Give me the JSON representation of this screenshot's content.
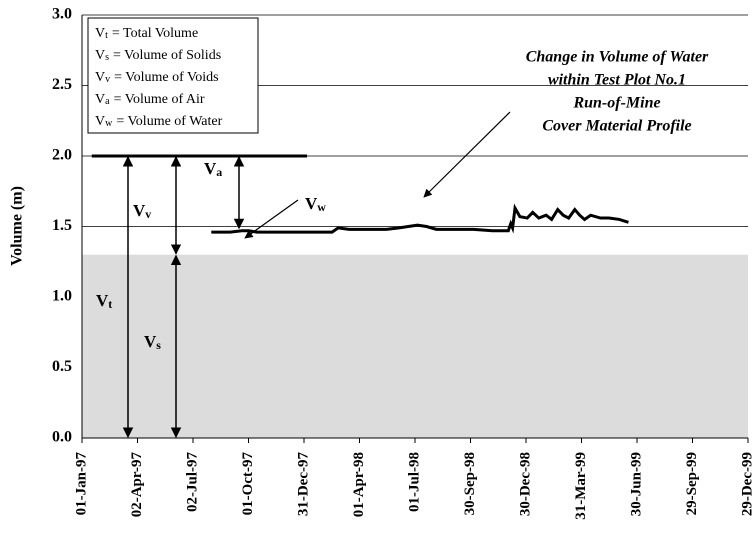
{
  "chart_data": {
    "type": "line",
    "y_label": "Volume (m)",
    "ylim": [
      0,
      3
    ],
    "yticks": [
      {
        "value": 0,
        "label": "0.0"
      },
      {
        "value": 0.5,
        "label": "0.5"
      },
      {
        "value": 1,
        "label": "1.0"
      },
      {
        "value": 1.5,
        "label": "1.5"
      },
      {
        "value": 2,
        "label": "2.0"
      },
      {
        "value": 2.5,
        "label": "2.5"
      },
      {
        "value": 3,
        "label": "3.0"
      }
    ],
    "xlim": [
      "1997-01-01",
      "1999-12-29"
    ],
    "xticks": [
      {
        "value": "1997-01-01",
        "label": "01-Jan-97"
      },
      {
        "value": "1997-04-02",
        "label": "02-Apr-97"
      },
      {
        "value": "1997-07-02",
        "label": "02-Jul-97"
      },
      {
        "value": "1997-10-01",
        "label": "01-Oct-97"
      },
      {
        "value": "1997-12-31",
        "label": "31-Dec-97"
      },
      {
        "value": "1998-04-01",
        "label": "01-Apr-98"
      },
      {
        "value": "1998-07-01",
        "label": "01-Jul-98"
      },
      {
        "value": "1998-09-30",
        "label": "30-Sep-98"
      },
      {
        "value": "1998-12-30",
        "label": "30-Dec-98"
      },
      {
        "value": "1999-03-31",
        "label": "31-Mar-99"
      },
      {
        "value": "1999-06-30",
        "label": "30-Jun-99"
      },
      {
        "value": "1999-09-29",
        "label": "29-Sep-99"
      },
      {
        "value": "1999-12-29",
        "label": "29-Dec-99"
      }
    ],
    "grid": true,
    "solids_level": 1.3,
    "solids_color": "#dcdcdc",
    "total_level": 2.0,
    "total_span": [
      "1997-01-17",
      "1998-01-05"
    ],
    "x": [
      "1997-08-01",
      "1997-09-01",
      "1997-09-20",
      "1997-10-01",
      "1997-10-15",
      "1997-11-15",
      "1997-12-15",
      "1998-01-15",
      "1998-02-15",
      "1998-02-25",
      "1998-03-15",
      "1998-04-15",
      "1998-05-15",
      "1998-06-05",
      "1998-06-20",
      "1998-07-05",
      "1998-07-20",
      "1998-08-05",
      "1998-09-05",
      "1998-10-05",
      "1998-11-05",
      "1998-12-01",
      "1998-12-05",
      "1998-12-08",
      "1998-12-12",
      "1998-12-20",
      "1999-01-01",
      "1999-01-10",
      "1999-01-20",
      "1999-02-01",
      "1999-02-10",
      "1999-02-20",
      "1999-03-01",
      "1999-03-10",
      "1999-03-20",
      "1999-03-28",
      "1999-04-05",
      "1999-04-15",
      "1999-05-01",
      "1999-05-15",
      "1999-06-01",
      "1999-06-16"
    ],
    "series": [
      {
        "color": "#000000",
        "values": [
          1.46,
          1.46,
          1.47,
          1.47,
          1.46,
          1.46,
          1.46,
          1.46,
          1.46,
          1.49,
          1.48,
          1.48,
          1.48,
          1.49,
          1.5,
          1.51,
          1.5,
          1.48,
          1.48,
          1.48,
          1.47,
          1.47,
          1.52,
          1.49,
          1.63,
          1.57,
          1.56,
          1.6,
          1.56,
          1.58,
          1.55,
          1.62,
          1.58,
          1.56,
          1.62,
          1.58,
          1.55,
          1.58,
          1.56,
          1.56,
          1.55,
          1.53
        ]
      }
    ],
    "legend": [
      {
        "symbol": "V",
        "sub": "t",
        "text": "= Total Volume"
      },
      {
        "symbol": "V",
        "sub": "s",
        "text": "= Volume of Solids"
      },
      {
        "symbol": "V",
        "sub": "v",
        "text": "= Volume of Voids"
      },
      {
        "symbol": "V",
        "sub": "a",
        "text": "= Volume of Air"
      },
      {
        "symbol": "V",
        "sub": "w",
        "text": "= Volume of Water"
      }
    ],
    "annotation": [
      "Change in Volume of Water",
      "within Test Plot No.1",
      "Run-of-Mine",
      "Cover Material Profile"
    ],
    "labels": {
      "vt": {
        "symbol": "V",
        "sub": "t"
      },
      "vv": {
        "symbol": "V",
        "sub": "v"
      },
      "vs": {
        "symbol": "V",
        "sub": "s"
      },
      "va": {
        "symbol": "V",
        "sub": "a"
      },
      "vw": {
        "symbol": "V",
        "sub": "w"
      }
    }
  }
}
